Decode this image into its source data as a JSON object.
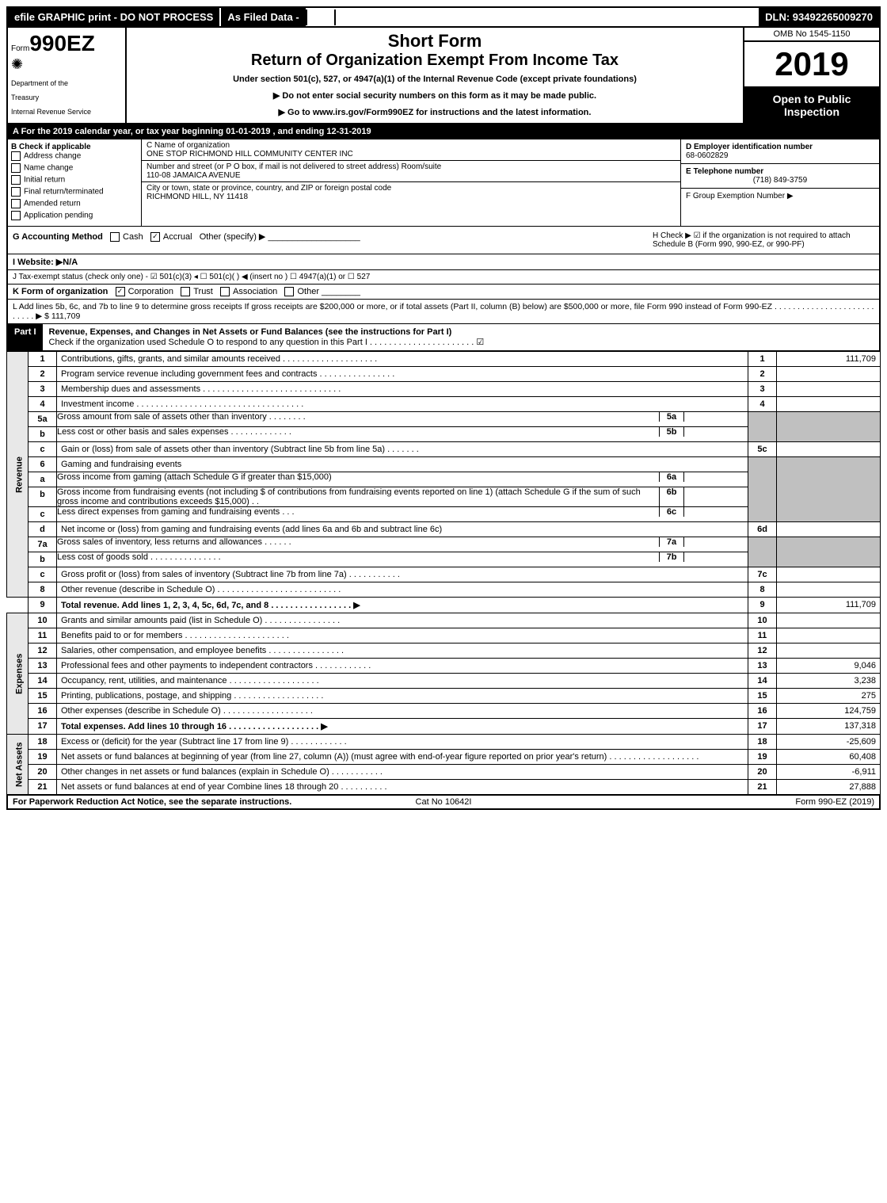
{
  "topbar": {
    "efile": "efile GRAPHIC print - DO NOT PROCESS",
    "asfile": "As Filed Data -",
    "dln": "DLN: 93492265009270"
  },
  "header": {
    "form_prefix": "Form",
    "form_number": "990EZ",
    "dept1": "Department of the",
    "dept2": "Treasury",
    "dept3": "Internal Revenue Service",
    "short_form": "Short Form",
    "title": "Return of Organization Exempt From Income Tax",
    "under_section": "Under section 501(c), 527, or 4947(a)(1) of the Internal Revenue Code (except private foundations)",
    "ssn_warning": "▶ Do not enter social security numbers on this form as it may be made public.",
    "goto": "▶ Go to www.irs.gov/Form990EZ for instructions and the latest information.",
    "omb": "OMB No 1545-1150",
    "year": "2019",
    "open": "Open to Public Inspection"
  },
  "lineA": "A  For the 2019 calendar year, or tax year beginning 01-01-2019 , and ending 12-31-2019",
  "sectionB": {
    "title": "B  Check if applicable",
    "items": [
      "Address change",
      "Name change",
      "Initial return",
      "Final return/terminated",
      "Amended return",
      "Application pending"
    ]
  },
  "sectionC": {
    "label": "C Name of organization",
    "name": "ONE STOP RICHMOND HILL COMMUNITY CENTER INC",
    "addr_label": "Number and street (or P O box, if mail is not delivered to street address)     Room/suite",
    "addr": "110-08 JAMAICA AVENUE",
    "city_label": "City or town, state or province, country, and ZIP or foreign postal code",
    "city": "RICHMOND HILL, NY  11418"
  },
  "sectionD": {
    "label": "D Employer identification number",
    "value": "68-0602829",
    "tel_label": "E Telephone number",
    "tel": "(718) 849-3759",
    "group_label": "F Group Exemption Number    ▶"
  },
  "lineG": {
    "label": "G Accounting Method",
    "cash": "Cash",
    "accrual": "Accrual",
    "other": "Other (specify) ▶"
  },
  "lineH": "H   Check ▶  ☑ if the organization is not required to attach Schedule B (Form 990, 990-EZ, or 990-PF)",
  "lineI": "I Website: ▶N/A",
  "lineJ": "J Tax-exempt status (check only one) - ☑ 501(c)(3) ◂ ☐ 501(c)( ) ◀ (insert no ) ☐ 4947(a)(1) or ☐ 527",
  "lineK": {
    "label": "K Form of organization",
    "corp": "Corporation",
    "trust": "Trust",
    "assoc": "Association",
    "other": "Other"
  },
  "lineL": "L Add lines 5b, 6c, and 7b to line 9 to determine gross receipts  If gross receipts are $200,000 or more, or if total assets (Part II, column (B) below) are $500,000 or more, file Form 990 instead of Form 990-EZ . . . . . . . . . . . . . . . . . . . . . . . . . . . ▶ $ 111,709",
  "part1": {
    "title": "Part I",
    "desc": "Revenue, Expenses, and Changes in Net Assets or Fund Balances (see the instructions for Part I)",
    "check": "Check if the organization used Schedule O to respond to any question in this Part I . . . . . . . . . . . . . . . . . . . . . . ☑"
  },
  "sidelabels": {
    "revenue": "Revenue",
    "expenses": "Expenses",
    "netassets": "Net Assets"
  },
  "lines": {
    "1": {
      "n": "1",
      "d": "Contributions, gifts, grants, and similar amounts received . . . . . . . . . . . . . . . . . . . .",
      "rn": "1",
      "v": "111,709"
    },
    "2": {
      "n": "2",
      "d": "Program service revenue including government fees and contracts . . . . . . . . . . . . . . . .",
      "rn": "2",
      "v": ""
    },
    "3": {
      "n": "3",
      "d": "Membership dues and assessments . . . . . . . . . . . . . . . . . . . . . . . . . . . . .",
      "rn": "3",
      "v": ""
    },
    "4": {
      "n": "4",
      "d": "Investment income . . . . . . . . . . . . . . . . . . . . . . . . . . . . . . . . . . .",
      "rn": "4",
      "v": ""
    },
    "5a": {
      "n": "5a",
      "d": "Gross amount from sale of assets other than inventory . . . . . . . .",
      "sn": "5a",
      "sv": ""
    },
    "5b": {
      "n": "b",
      "d": "Less  cost or other basis and sales expenses . . . . . . . . . . . . .",
      "sn": "5b",
      "sv": ""
    },
    "5c": {
      "n": "c",
      "d": "Gain or (loss) from sale of assets other than inventory (Subtract line 5b from line 5a) . . . . . . .",
      "rn": "5c",
      "v": ""
    },
    "6": {
      "n": "6",
      "d": "Gaming and fundraising events"
    },
    "6a": {
      "n": "a",
      "d": "Gross income from gaming (attach Schedule G if greater than $15,000)",
      "sn": "6a",
      "sv": ""
    },
    "6b": {
      "n": "b",
      "d": "Gross income from fundraising events (not including $                            of contributions from fundraising events reported on line 1) (attach Schedule G if the sum of such gross income and contributions exceeds $15,000)    .  .",
      "sn": "6b",
      "sv": ""
    },
    "6c": {
      "n": "c",
      "d": "Less  direct expenses from gaming and fundraising events     .  .  .",
      "sn": "6c",
      "sv": ""
    },
    "6d": {
      "n": "d",
      "d": "Net income or (loss) from gaming and fundraising events (add lines 6a and 6b and subtract line 6c)",
      "rn": "6d",
      "v": ""
    },
    "7a": {
      "n": "7a",
      "d": "Gross sales of inventory, less returns and allowances . . . . . .",
      "sn": "7a",
      "sv": ""
    },
    "7b": {
      "n": "b",
      "d": "Less  cost of goods sold            . . . . . . . . . . . . . . .",
      "sn": "7b",
      "sv": ""
    },
    "7c": {
      "n": "c",
      "d": "Gross profit or (loss) from sales of inventory (Subtract line 7b from line 7a) . . . . . . . . . . .",
      "rn": "7c",
      "v": ""
    },
    "8": {
      "n": "8",
      "d": "Other revenue (describe in Schedule O) . . . . . . . . . . . . . . . . . . . . . . . . . .",
      "rn": "8",
      "v": ""
    },
    "9": {
      "n": "9",
      "d": "Total revenue. Add lines 1, 2, 3, 4, 5c, 6d, 7c, and 8 . . . . . . . . . . . . . . . . .   ▶",
      "rn": "9",
      "v": "111,709",
      "bold": true
    },
    "10": {
      "n": "10",
      "d": "Grants and similar amounts paid (list in Schedule O) .  .  .  .  .  .  .  .  .  .  .  .  .  .  .  .",
      "rn": "10",
      "v": ""
    },
    "11": {
      "n": "11",
      "d": "Benefits paid to or for members     .  .  .  .  .  .  .  .  .  .  .  .  .  .  .  .  .  .  .  .  .  .",
      "rn": "11",
      "v": ""
    },
    "12": {
      "n": "12",
      "d": "Salaries, other compensation, and employee benefits .  .  .  .  .  .  .  .  .  .  .  .  .  .  .  .",
      "rn": "12",
      "v": ""
    },
    "13": {
      "n": "13",
      "d": "Professional fees and other payments to independent contractors .  .  .  .  .  .  .  .  .  .  .  .",
      "rn": "13",
      "v": "9,046"
    },
    "14": {
      "n": "14",
      "d": "Occupancy, rent, utilities, and maintenance .  .  .  .  .  .  .  .  .  .  .  .  .  .  .  .  .  .  .",
      "rn": "14",
      "v": "3,238"
    },
    "15": {
      "n": "15",
      "d": "Printing, publications, postage, and shipping .  .  .  .  .  .  .  .  .  .  .  .  .  .  .  .  .  .  .",
      "rn": "15",
      "v": "275"
    },
    "16": {
      "n": "16",
      "d": "Other expenses (describe in Schedule O)     .  .  .  .  .  .  .  .  .  .  .  .  .  .  .  .  .  .  .",
      "rn": "16",
      "v": "124,759"
    },
    "17": {
      "n": "17",
      "d": "Total expenses. Add lines 10 through 16     .  .  .  .  .  .  .  .  .  .  .  .  .  .  .  .  .  .  . ▶",
      "rn": "17",
      "v": "137,318",
      "bold": true
    },
    "18": {
      "n": "18",
      "d": "Excess or (deficit) for the year (Subtract line 17 from line 9)       .  .  .  .  .  .  .  .  .  .  .  .",
      "rn": "18",
      "v": "-25,609"
    },
    "19": {
      "n": "19",
      "d": "Net assets or fund balances at beginning of year (from line 27, column (A)) (must agree with end-of-year figure reported on prior year's return) .  .  .  .  .  .  .  .  .  .  .  .  .  .  .  .  .  .  .",
      "rn": "19",
      "v": "60,408"
    },
    "20": {
      "n": "20",
      "d": "Other changes in net assets or fund balances (explain in Schedule O) .  .  .  .  .  .  .  .  .  .  .",
      "rn": "20",
      "v": "-6,911"
    },
    "21": {
      "n": "21",
      "d": "Net assets or fund balances at end of year  Combine lines 18 through 20 .  .  .  .  .  .  .  .  .  .",
      "rn": "21",
      "v": "27,888"
    }
  },
  "footer": {
    "left": "For Paperwork Reduction Act Notice, see the separate instructions.",
    "center": "Cat No 10642I",
    "right": "Form 990-EZ (2019)"
  }
}
